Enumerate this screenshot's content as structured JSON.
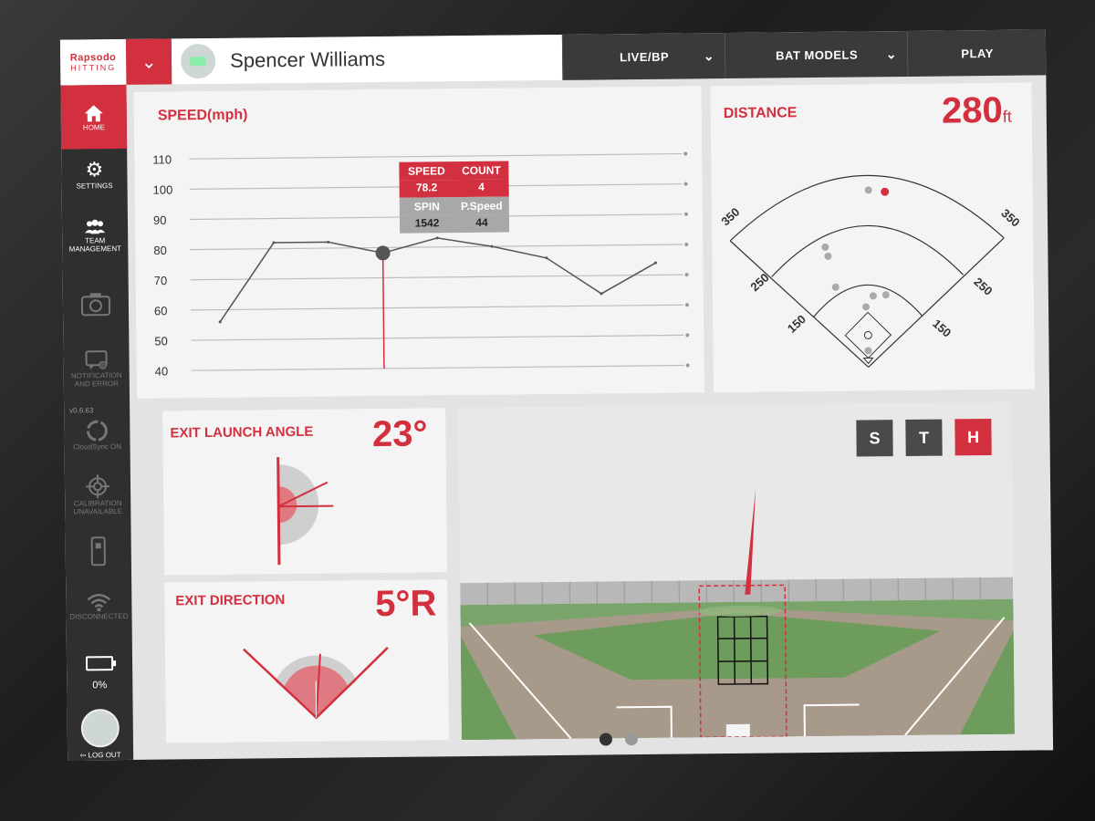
{
  "app": {
    "logo_line1": "Rapsodo",
    "logo_line2": "HITTING"
  },
  "user": {
    "name": "Spencer Williams"
  },
  "nav": {
    "mode": "LIVE/BP",
    "bat_models": "BAT MODELS",
    "play": "PLAY"
  },
  "sidebar": {
    "home": "HOME",
    "settings": "SETTINGS",
    "team": "TEAM MANAGEMENT",
    "notification": "NOTIFICATION AND ERROR",
    "version": "v0.6.63",
    "sync": "CloudSync ON",
    "calibration": "CALIBRATION UNAVAILABLE",
    "disconnected": "DISCONNECTED",
    "battery": "0%",
    "logout": "LOG OUT"
  },
  "speed_panel": {
    "title": "SPEED(mph)",
    "tooltip": {
      "speed_label": "SPEED",
      "count_label": "COUNT",
      "speed_value": "78.2",
      "count_value": "4",
      "spin_label": "SPIN",
      "pspeed_label": "P.Speed",
      "spin_value": "1542",
      "pspeed_value": "44"
    }
  },
  "chart_data": {
    "type": "line",
    "title": "SPEED(mph)",
    "x": [
      1,
      2,
      3,
      4,
      5,
      6,
      7,
      8,
      9
    ],
    "values": [
      56,
      82,
      82,
      78.2,
      83,
      80,
      76,
      64,
      74
    ],
    "ylim": [
      40,
      110
    ],
    "yticks": [
      "110",
      "100",
      "90",
      "80",
      "70",
      "60",
      "50",
      "40"
    ],
    "xlabel": "",
    "ylabel": "",
    "grid": true,
    "highlighted_index": 3
  },
  "distance_panel": {
    "title": "DISTANCE",
    "value": "280",
    "unit": "ft",
    "labels": {
      "left_350": "350",
      "right_350": "350",
      "left_250": "250",
      "right_250": "250",
      "left_150": "150",
      "right_150": "150"
    }
  },
  "launch_panel": {
    "title": "EXIT LAUNCH ANGLE",
    "value": "23°"
  },
  "direction_panel": {
    "title": "EXIT DIRECTION",
    "value": "5°R"
  },
  "view_tabs": [
    "S",
    "T",
    "H"
  ],
  "view_active": "H",
  "colors": {
    "accent": "#d3303f",
    "dark": "#2f2f2f"
  }
}
